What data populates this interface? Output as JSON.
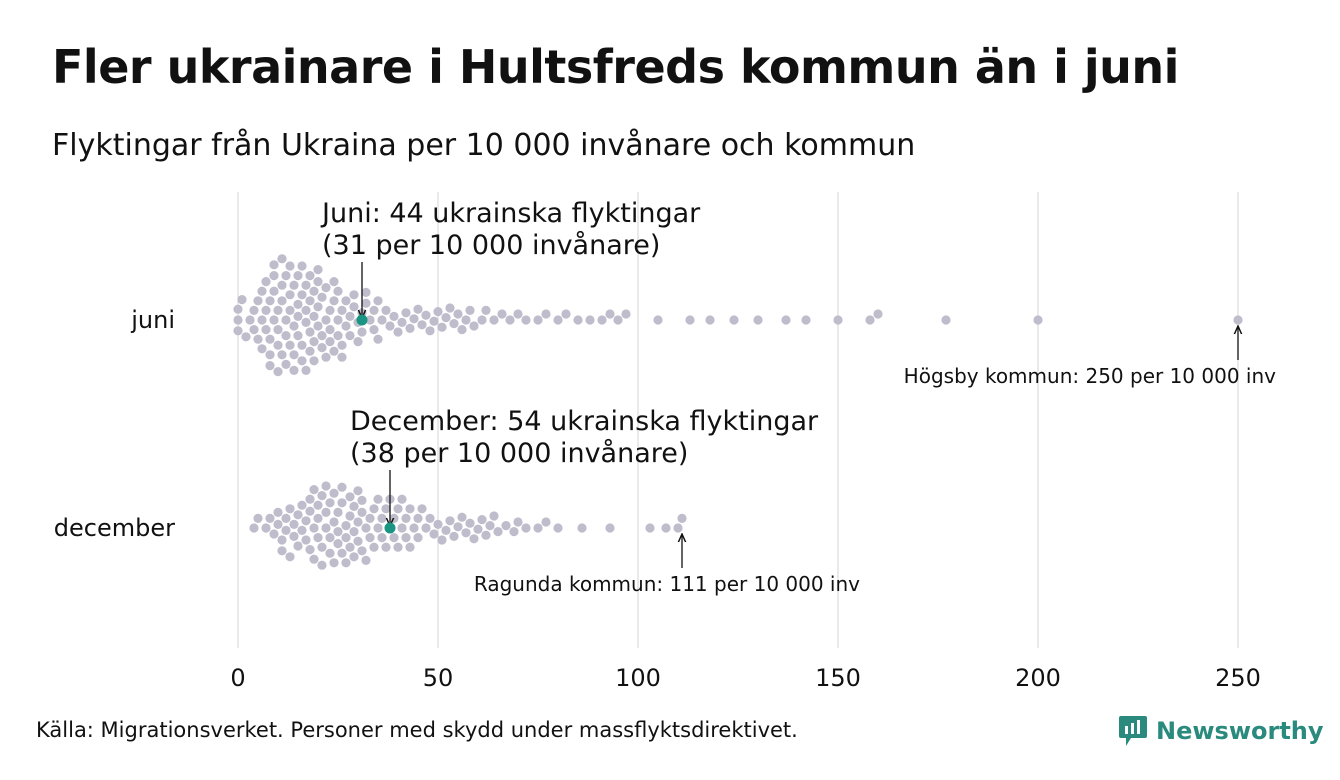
{
  "header": {
    "title": "Fler ukrainare i Hultsfreds kommun än i juni",
    "subtitle": "Flyktingar från Ukraina per 10 000 invånare och kommun"
  },
  "footer": {
    "source": "Källa: Migrationsverket. Personer med skydd under massflyktsdirektivet.",
    "brand": "Newsworthy"
  },
  "colors": {
    "dot": "#bfbccc",
    "highlight": "#1a9483",
    "grid": "#d4d4d4",
    "brand": "#2a8a7e"
  },
  "chart_data": {
    "type": "scatter",
    "subtype": "beeswarm",
    "title": "Fler ukrainare i Hultsfreds kommun än i juni",
    "subtitle": "Flyktingar från Ukraina per 10 000 invånare och kommun",
    "xlim": [
      0,
      250
    ],
    "xticks": [
      0,
      50,
      100,
      150,
      200,
      250
    ],
    "grid": "vertical",
    "categories": [
      "juni",
      "december"
    ],
    "series": [
      {
        "name": "juni",
        "values": [
          0,
          0,
          0,
          1,
          2,
          3,
          4,
          4,
          5,
          5,
          6,
          6,
          6,
          7,
          7,
          7,
          8,
          8,
          8,
          8,
          9,
          9,
          9,
          9,
          10,
          10,
          10,
          10,
          11,
          11,
          11,
          11,
          12,
          12,
          12,
          12,
          13,
          13,
          13,
          13,
          14,
          14,
          14,
          14,
          15,
          15,
          15,
          15,
          16,
          16,
          16,
          16,
          17,
          17,
          17,
          17,
          18,
          18,
          18,
          18,
          19,
          19,
          19,
          19,
          20,
          20,
          20,
          20,
          21,
          21,
          21,
          22,
          22,
          22,
          23,
          23,
          23,
          24,
          24,
          24,
          25,
          25,
          25,
          26,
          26,
          26,
          27,
          27,
          28,
          28,
          29,
          29,
          30,
          30,
          31,
          31,
          32,
          32,
          33,
          34,
          34,
          35,
          35,
          36,
          37,
          38,
          39,
          40,
          41,
          42,
          43,
          44,
          45,
          46,
          47,
          48,
          49,
          50,
          51,
          52,
          53,
          54,
          55,
          56,
          57,
          58,
          59,
          61,
          62,
          64,
          66,
          68,
          70,
          72,
          75,
          77,
          80,
          82,
          85,
          88,
          91,
          93,
          95,
          97,
          105,
          113,
          118,
          124,
          130,
          137,
          142,
          150,
          158,
          160,
          177,
          200,
          250
        ],
        "highlight": {
          "label": "Juni: 44 ukrainska flyktingar",
          "label2": "(31 per 10 000 invånare)",
          "value": 31
        },
        "max_annotation": {
          "label": "Högsby kommun: 250 per 10 000 inv",
          "value": 250
        }
      },
      {
        "name": "december",
        "values": [
          4,
          5,
          7,
          8,
          9,
          10,
          10,
          11,
          11,
          12,
          12,
          13,
          13,
          14,
          14,
          15,
          15,
          16,
          16,
          17,
          17,
          18,
          18,
          18,
          19,
          19,
          19,
          20,
          20,
          20,
          21,
          21,
          21,
          22,
          22,
          22,
          23,
          23,
          23,
          24,
          24,
          24,
          25,
          25,
          25,
          26,
          26,
          26,
          27,
          27,
          27,
          28,
          28,
          28,
          29,
          29,
          29,
          30,
          30,
          30,
          31,
          31,
          31,
          32,
          32,
          33,
          33,
          34,
          34,
          35,
          35,
          36,
          36,
          37,
          37,
          38,
          38,
          39,
          39,
          40,
          40,
          41,
          41,
          42,
          42,
          43,
          43,
          44,
          45,
          45,
          46,
          47,
          48,
          49,
          50,
          51,
          52,
          53,
          54,
          55,
          56,
          57,
          58,
          59,
          60,
          61,
          62,
          63,
          64,
          65,
          67,
          69,
          70,
          72,
          75,
          77,
          80,
          86,
          93,
          103,
          107,
          110,
          111
        ],
        "highlight": {
          "label": "December: 54 ukrainska flyktingar",
          "label2": "(38 per 10 000 invånare)",
          "value": 38
        },
        "max_annotation": {
          "label": "Ragunda kommun: 111 per 10 000 inv",
          "value": 111
        }
      }
    ]
  }
}
